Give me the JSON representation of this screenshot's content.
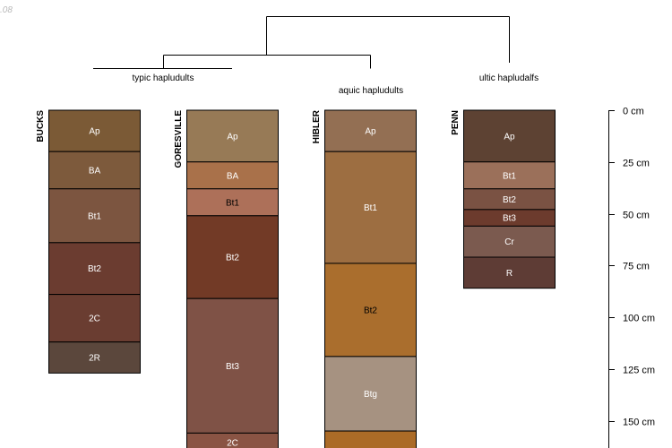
{
  "corner_text": ".08",
  "dendrogram": {
    "groups": [
      {
        "label": "typic hapludults"
      },
      {
        "label": "aquic hapludults"
      },
      {
        "label": "ultic hapludalfs"
      }
    ]
  },
  "profiles": [
    {
      "name": "BUCKS",
      "horizons": [
        {
          "name": "Ap",
          "top": 0,
          "bottom": 20,
          "color": "#7b5a36",
          "text_color": "#ffffff"
        },
        {
          "name": "BA",
          "top": 20,
          "bottom": 38,
          "color": "#7d5a3c",
          "text_color": "#ffffff"
        },
        {
          "name": "Bt1",
          "top": 38,
          "bottom": 64,
          "color": "#7c5540",
          "text_color": "#ffffff"
        },
        {
          "name": "Bt2",
          "top": 64,
          "bottom": 89,
          "color": "#6b3c30",
          "text_color": "#ffffff"
        },
        {
          "name": "2C",
          "top": 89,
          "bottom": 112,
          "color": "#6a3d31",
          "text_color": "#ffffff"
        },
        {
          "name": "2R",
          "top": 112,
          "bottom": 127,
          "color": "#5b473c",
          "text_color": "#ffffff"
        }
      ]
    },
    {
      "name": "GORESVILLE",
      "horizons": [
        {
          "name": "Ap",
          "top": 0,
          "bottom": 25,
          "color": "#977a56",
          "text_color": "#ffffff"
        },
        {
          "name": "BA",
          "top": 25,
          "bottom": 38,
          "color": "#a9714a",
          "text_color": "#ffffff"
        },
        {
          "name": "Bt1",
          "top": 38,
          "bottom": 51,
          "color": "#ad7059",
          "text_color": "#000000"
        },
        {
          "name": "Bt2",
          "top": 51,
          "bottom": 91,
          "color": "#723a26",
          "text_color": "#ffffff"
        },
        {
          "name": "Bt3",
          "top": 91,
          "bottom": 156,
          "color": "#7f5246",
          "text_color": "#ffffff"
        },
        {
          "name": "2C",
          "top": 156,
          "bottom": 165,
          "color": "#8a5444",
          "text_color": "#ffffff"
        }
      ]
    },
    {
      "name": "HIBLER",
      "horizons": [
        {
          "name": "Ap",
          "top": 0,
          "bottom": 20,
          "color": "#936f53",
          "text_color": "#ffffff"
        },
        {
          "name": "Bt1",
          "top": 20,
          "bottom": 74,
          "color": "#9d6e41",
          "text_color": "#ffffff"
        },
        {
          "name": "Bt2",
          "top": 74,
          "bottom": 119,
          "color": "#aa6e2d",
          "text_color": "#000000"
        },
        {
          "name": "Btg",
          "top": 119,
          "bottom": 155,
          "color": "#a69281",
          "text_color": "#ffffff"
        },
        {
          "name": "",
          "top": 155,
          "bottom": 165,
          "color": "#ab6b27",
          "text_color": "#000000"
        }
      ]
    },
    {
      "name": "PENN",
      "horizons": [
        {
          "name": "Ap",
          "top": 0,
          "bottom": 25,
          "color": "#5d4233",
          "text_color": "#ffffff"
        },
        {
          "name": "Bt1",
          "top": 25,
          "bottom": 38,
          "color": "#9b705a",
          "text_color": "#ffffff"
        },
        {
          "name": "Bt2",
          "top": 38,
          "bottom": 48,
          "color": "#7a5243",
          "text_color": "#ffffff"
        },
        {
          "name": "Bt3",
          "top": 48,
          "bottom": 56,
          "color": "#6c3b2d",
          "text_color": "#ffffff"
        },
        {
          "name": "Cr",
          "top": 56,
          "bottom": 71,
          "color": "#7b5a4f",
          "text_color": "#ffffff"
        },
        {
          "name": "R",
          "top": 71,
          "bottom": 86,
          "color": "#5e3c35",
          "text_color": "#ffffff"
        }
      ]
    }
  ],
  "depth_axis": {
    "ticks": [
      {
        "value": 0,
        "label": "0 cm"
      },
      {
        "value": 25,
        "label": "25 cm"
      },
      {
        "value": 50,
        "label": "50 cm"
      },
      {
        "value": 75,
        "label": "75 cm"
      },
      {
        "value": 100,
        "label": "100 cm"
      },
      {
        "value": 125,
        "label": "125 cm"
      },
      {
        "value": 150,
        "label": "150 cm"
      }
    ]
  }
}
